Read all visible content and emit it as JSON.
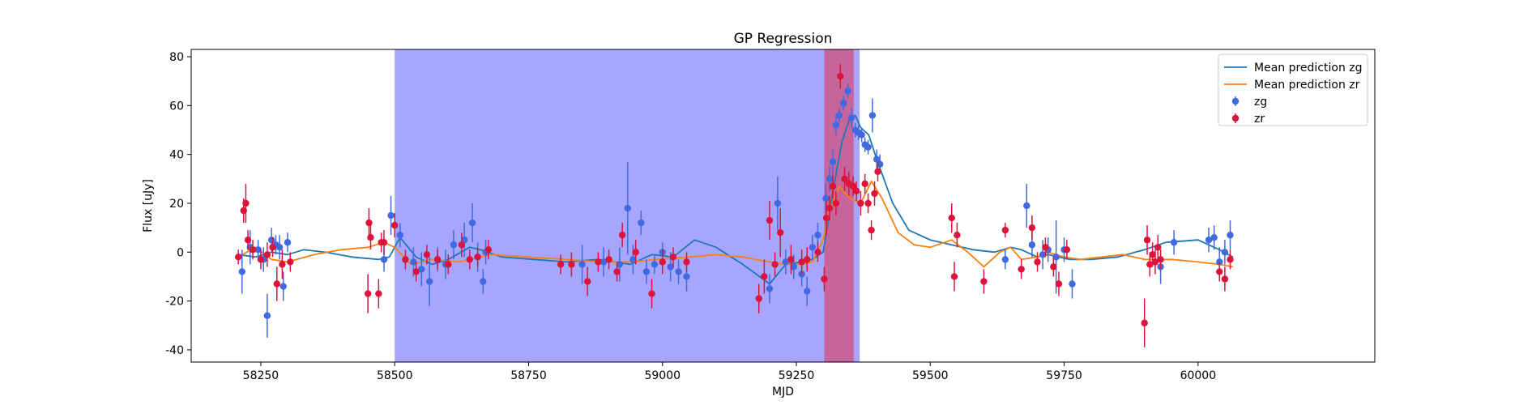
{
  "chart_data": {
    "type": "scatter",
    "title": "GP Regression",
    "xlabel": "MJD",
    "ylabel": "Flux [uJy]",
    "xlim": [
      58120,
      60330
    ],
    "ylim": [
      -45,
      83
    ],
    "xticks": [
      58250,
      58500,
      58750,
      59000,
      59250,
      59500,
      59750,
      60000
    ],
    "yticks": [
      -40,
      -20,
      0,
      20,
      40,
      60,
      80
    ],
    "grid": false,
    "legend_position": "top-right",
    "shaded_regions": [
      {
        "x0": 58500,
        "x1": 59368,
        "color": "#7070ff",
        "opacity": 0.62
      },
      {
        "x0": 59302,
        "x1": 59357,
        "color": "#e0304a",
        "opacity": 0.55
      }
    ],
    "lines": [
      {
        "name": "Mean prediction zg",
        "color": "#1f77b4",
        "x": [
          58208,
          58240,
          58270,
          58300,
          58330,
          58370,
          58420,
          58470,
          58490,
          58510,
          58540,
          58570,
          58600,
          58640,
          58660,
          58700,
          58760,
          58820,
          58880,
          58940,
          58980,
          59020,
          59060,
          59100,
          59150,
          59200,
          59230,
          59260,
          59280,
          59300,
          59320,
          59335,
          59350,
          59360,
          59370,
          59385,
          59400,
          59430,
          59460,
          59500,
          59540,
          59580,
          59620,
          59650,
          59670,
          59700,
          59720,
          59760,
          59800,
          59850,
          59900,
          59940,
          60000,
          60040,
          60065
        ],
        "y": [
          -1,
          -2,
          0,
          -1,
          1,
          0,
          -2,
          -3,
          -2,
          6,
          -2,
          -5,
          -3,
          2,
          1,
          -2,
          -3,
          -4,
          -3,
          -5,
          -1,
          -2,
          5,
          2,
          -5,
          -13,
          -5,
          -4,
          -3,
          0,
          27,
          45,
          55,
          56,
          51,
          48,
          38,
          20,
          9,
          5,
          3,
          1,
          0,
          2,
          1,
          -2,
          -1,
          -3,
          -3,
          -2,
          1,
          4,
          5,
          1,
          -2
        ]
      },
      {
        "name": "Mean prediction zr",
        "color": "#ff7f0e",
        "x": [
          58208,
          58240,
          58270,
          58300,
          58350,
          58400,
          58450,
          58480,
          58500,
          58530,
          58570,
          58620,
          58680,
          58750,
          58820,
          58880,
          58940,
          58990,
          59050,
          59100,
          59150,
          59200,
          59230,
          59260,
          59280,
          59300,
          59310,
          59330,
          59350,
          59370,
          59390,
          59410,
          59440,
          59470,
          59500,
          59540,
          59570,
          59600,
          59630,
          59650,
          59670,
          59700,
          59720,
          59750,
          59780,
          59820,
          59860,
          59900,
          59950,
          60000,
          60040,
          60065
        ],
        "y": [
          -2,
          2,
          -3,
          -4,
          -1,
          1,
          2,
          4,
          2,
          -5,
          -3,
          -4,
          -1,
          -2,
          -3,
          -4,
          -4,
          -3,
          -2,
          -1,
          -2,
          -4,
          -5,
          -5,
          -4,
          5,
          16,
          27,
          22,
          20,
          29,
          22,
          8,
          3,
          2,
          5,
          0,
          -6,
          0,
          2,
          -3,
          -2,
          0,
          -2,
          -3,
          -2,
          -1,
          -3,
          -3,
          -4,
          -5,
          -6
        ]
      }
    ],
    "series": [
      {
        "name": "zg",
        "color": "#4169e1",
        "x": [
          58215,
          58230,
          58245,
          58255,
          58262,
          58270,
          58278,
          58285,
          58292,
          58300,
          58480,
          58493,
          58510,
          58535,
          58550,
          58565,
          58580,
          58595,
          58610,
          58630,
          58645,
          58655,
          58665,
          58670,
          58850,
          58890,
          58920,
          58935,
          58945,
          58960,
          58970,
          58985,
          59000,
          59015,
          59030,
          59045,
          59200,
          59215,
          59230,
          59245,
          59260,
          59270,
          59280,
          59290,
          59305,
          59312,
          59318,
          59324,
          59330,
          59338,
          59346,
          59353,
          59360,
          59366,
          59372,
          59378,
          59384,
          59392,
          59400,
          59406,
          59640,
          59680,
          59690,
          59710,
          59720,
          59735,
          59750,
          59765,
          60020,
          60030,
          60040,
          60050,
          60060,
          59930,
          59955
        ],
        "y": [
          -8,
          2,
          1,
          -3,
          -26,
          5,
          3,
          2,
          -14,
          4,
          -3,
          15,
          7,
          -4,
          -7,
          -12,
          -3,
          -5,
          3,
          5,
          12,
          -2,
          -12,
          0,
          -5,
          -4,
          -5,
          18,
          -3,
          12,
          -8,
          -5,
          0,
          -6,
          -8,
          -10,
          -15,
          20,
          -4,
          -6,
          -9,
          -16,
          2,
          7,
          22,
          30,
          37,
          52,
          56,
          61,
          66,
          55,
          50,
          49,
          48,
          44,
          43,
          56,
          38,
          36,
          -3,
          19,
          3,
          -1,
          1,
          -2,
          1,
          -13,
          5,
          6,
          -4,
          0,
          7,
          -6,
          4
        ],
        "err": [
          9,
          7,
          4,
          5,
          9,
          5,
          4,
          5,
          6,
          4,
          5,
          8,
          5,
          6,
          7,
          10,
          5,
          6,
          6,
          7,
          8,
          6,
          5,
          5,
          8,
          6,
          7,
          19,
          6,
          5,
          5,
          4,
          4,
          6,
          5,
          6,
          6,
          11,
          5,
          5,
          5,
          6,
          5,
          5,
          6,
          5,
          5,
          4,
          3,
          3,
          3,
          4,
          3,
          3,
          3,
          3,
          3,
          7,
          4,
          4,
          4,
          9,
          5,
          6,
          5,
          15,
          5,
          6,
          5,
          5,
          6,
          5,
          6,
          7,
          5
        ]
      },
      {
        "name": "zr",
        "color": "#dc143c",
        "x": [
          58208,
          58218,
          58222,
          58226,
          58235,
          58250,
          58262,
          58272,
          58280,
          58290,
          58305,
          58450,
          58452,
          58455,
          58470,
          58475,
          58480,
          58500,
          58520,
          58540,
          58560,
          58580,
          58600,
          58625,
          58640,
          58655,
          58675,
          58810,
          58830,
          58860,
          58880,
          58900,
          58915,
          58925,
          58950,
          58980,
          59000,
          59020,
          59045,
          59180,
          59190,
          59200,
          59210,
          59220,
          59240,
          59260,
          59270,
          59290,
          59302,
          59306,
          59312,
          59318,
          59324,
          59332,
          59340,
          59348,
          59356,
          59362,
          59370,
          59378,
          59384,
          59390,
          59396,
          59402,
          59540,
          59545,
          59550,
          59600,
          59640,
          59670,
          59690,
          59700,
          59715,
          59730,
          59740,
          59755,
          59900,
          59905,
          59910,
          59915,
          59920,
          59925,
          59930,
          60040,
          60050,
          60060
        ],
        "y": [
          -2,
          17,
          20,
          5,
          1,
          -3,
          -1,
          2,
          -13,
          -5,
          -4,
          -17,
          12,
          6,
          -17,
          4,
          4,
          11,
          -3,
          -8,
          -1,
          -3,
          -5,
          3,
          -3,
          -2,
          1,
          -5,
          -5,
          -12,
          -4,
          -3,
          -8,
          7,
          0,
          -17,
          -4,
          -2,
          -4,
          -19,
          -10,
          13,
          -5,
          8,
          -3,
          -4,
          -3,
          0,
          -11,
          14,
          18,
          27,
          20,
          72,
          30,
          28,
          27,
          25,
          20,
          28,
          20,
          9,
          24,
          33,
          14,
          -10,
          7,
          -12,
          9,
          -7,
          10,
          -4,
          2,
          -6,
          -13,
          1,
          -29,
          5,
          -5,
          -1,
          -4,
          2,
          -3,
          -8,
          -11,
          -3
        ],
        "err": [
          3,
          5,
          8,
          4,
          4,
          4,
          5,
          4,
          7,
          6,
          4,
          8,
          6,
          5,
          6,
          4,
          5,
          5,
          4,
          4,
          4,
          4,
          4,
          5,
          4,
          4,
          4,
          4,
          5,
          6,
          4,
          4,
          4,
          5,
          5,
          6,
          5,
          4,
          4,
          6,
          7,
          8,
          5,
          10,
          6,
          5,
          5,
          4,
          5,
          7,
          5,
          5,
          5,
          5,
          5,
          5,
          4,
          4,
          5,
          4,
          4,
          4,
          5,
          4,
          6,
          6,
          5,
          5,
          3,
          4,
          5,
          4,
          4,
          4,
          5,
          4,
          10,
          6,
          5,
          5,
          5,
          5,
          4,
          4,
          5,
          4
        ]
      }
    ]
  }
}
